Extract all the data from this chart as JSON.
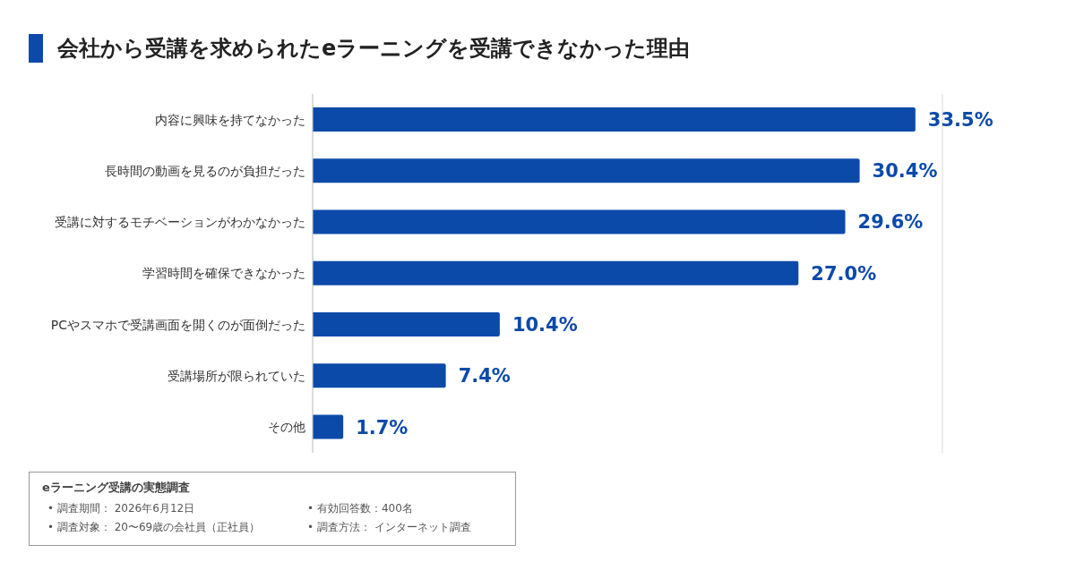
{
  "chart_data": {
    "type": "bar",
    "orientation": "horizontal",
    "title": "会社から受講を求められたeラーニングを受講できなかった理由",
    "categories": [
      "内容に興味を持てなかった",
      "長時間の動画を見るのが負担だった",
      "受講に対するモチベーションがわかなかった",
      "学習時間を確保できなかった",
      "PCやスマホで受講画面を開くのが面倒だった",
      "受講場所が限られていた",
      "その他"
    ],
    "values": [
      33.5,
      30.4,
      29.6,
      27.0,
      10.4,
      7.4,
      1.7
    ],
    "value_labels": [
      "33.5%",
      "30.4%",
      "29.6%",
      "27.0%",
      "10.4%",
      "7.4%",
      "1.7%"
    ],
    "color": "#0c4aaa",
    "xlim": [
      0,
      35
    ],
    "tick_labels": "y",
    "grid": "x",
    "annotations": [
      "eラーニング受講の実態調査",
      "• 調査期間： 2026年6月12日",
      "• 有効回答数：400名",
      "• 調査対象： 20〜69歳の会社員（正社員）",
      "• 調査方法： インターネット調査"
    ]
  }
}
